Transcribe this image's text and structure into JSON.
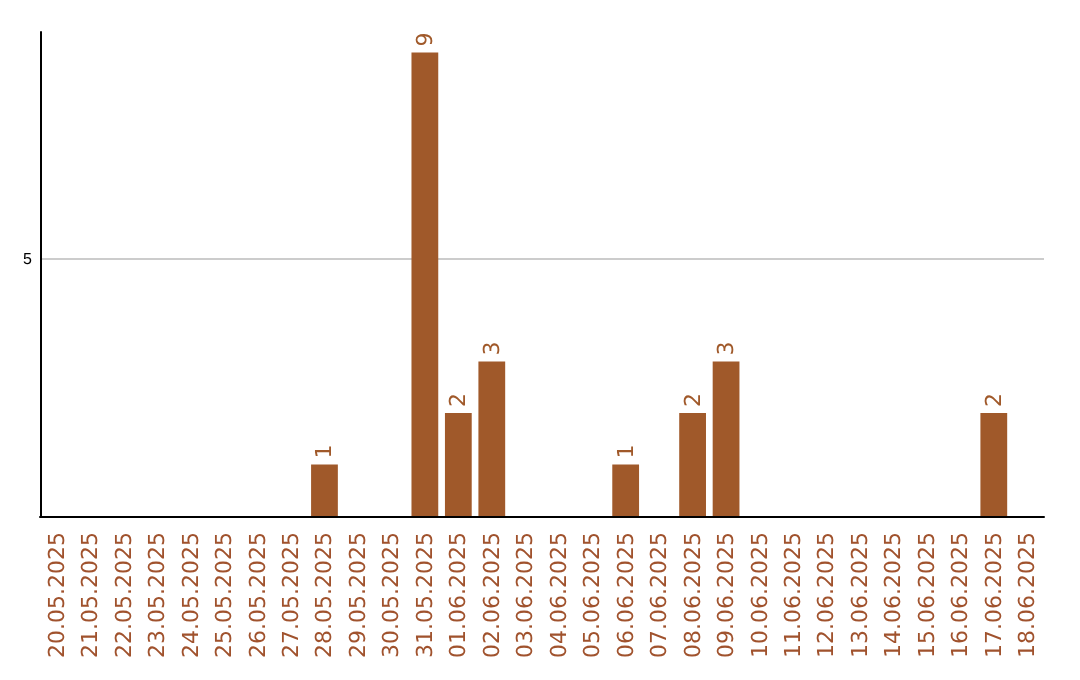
{
  "chart_data": {
    "type": "bar",
    "categories": [
      "20.05.2025",
      "21.05.2025",
      "22.05.2025",
      "23.05.2025",
      "24.05.2025",
      "25.05.2025",
      "26.05.2025",
      "27.05.2025",
      "28.05.2025",
      "29.05.2025",
      "30.05.2025",
      "31.05.2025",
      "01.06.2025",
      "02.06.2025",
      "03.06.2025",
      "04.06.2025",
      "05.06.2025",
      "06.06.2025",
      "07.06.2025",
      "08.06.2025",
      "09.06.2025",
      "10.06.2025",
      "11.06.2025",
      "12.06.2025",
      "13.06.2025",
      "14.06.2025",
      "15.06.2025",
      "16.06.2025",
      "17.06.2025",
      "18.06.2025"
    ],
    "values": [
      0,
      0,
      0,
      0,
      0,
      0,
      0,
      0,
      1,
      0,
      0,
      9,
      2,
      3,
      0,
      0,
      0,
      1,
      0,
      2,
      3,
      0,
      0,
      0,
      0,
      0,
      0,
      0,
      2,
      0
    ],
    "value_labels": [
      null,
      null,
      null,
      null,
      null,
      null,
      null,
      null,
      "1",
      null,
      null,
      "9",
      "2",
      "3",
      null,
      null,
      null,
      "1",
      null,
      "2",
      "3",
      null,
      null,
      null,
      null,
      null,
      null,
      null,
      "2",
      null
    ],
    "color": "#a0592a",
    "ylim": [
      0,
      9.4
    ],
    "yticks": [
      5
    ],
    "grid": "y"
  }
}
